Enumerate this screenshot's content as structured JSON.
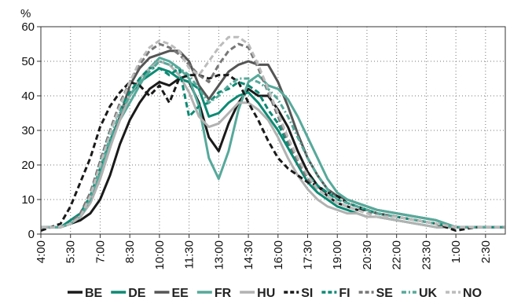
{
  "chart_data": {
    "type": "line",
    "ylabel": "%",
    "ylim": [
      0,
      60
    ],
    "yticks": [
      0,
      10,
      20,
      30,
      40,
      50,
      60
    ],
    "xlim": [
      4.0,
      27.5
    ],
    "xticks": [
      "4:00",
      "5:30",
      "7:00",
      "8:30",
      "10:00",
      "11:30",
      "13:00",
      "14:30",
      "16:00",
      "17:30",
      "19:00",
      "20:30",
      "22:00",
      "23:30",
      "1:00",
      "2:30"
    ],
    "grid": true,
    "legend_position": "bottom",
    "series": [
      {
        "name": "BE",
        "color": "#1a1a1a",
        "dash": "solid",
        "x": [
          4.0,
          5.0,
          5.5,
          6.0,
          6.5,
          7.0,
          7.5,
          8.0,
          8.5,
          9.0,
          9.5,
          10.0,
          10.5,
          11.0,
          11.5,
          12.0,
          12.5,
          13.0,
          13.5,
          14.0,
          14.5,
          15.0,
          15.5,
          16.0,
          16.5,
          17.0,
          17.5,
          18.0,
          18.5,
          19.0,
          19.5,
          20.0,
          20.5,
          21.0,
          22.0,
          23.0,
          24.0,
          24.5,
          25.0,
          26.0,
          27.5
        ],
        "y": [
          2,
          2,
          3,
          4,
          6,
          10,
          17,
          26,
          33,
          38,
          42,
          44,
          43,
          45,
          44,
          38,
          28,
          24,
          32,
          38,
          42,
          40,
          40,
          36,
          31,
          24,
          18,
          14,
          11,
          9,
          8,
          7,
          7,
          6,
          5,
          4,
          3,
          2,
          2,
          2,
          2
        ]
      },
      {
        "name": "DE",
        "color": "#0d8a74",
        "dash": "solid",
        "x": [
          4.0,
          5.0,
          5.5,
          6.0,
          6.5,
          7.0,
          7.5,
          8.0,
          8.5,
          9.0,
          9.5,
          10.0,
          10.5,
          11.0,
          11.5,
          12.0,
          12.5,
          13.0,
          13.5,
          14.0,
          14.5,
          15.0,
          15.5,
          16.0,
          16.5,
          17.0,
          17.5,
          18.0,
          18.5,
          19.0,
          19.5,
          20.0,
          20.5,
          21.0,
          22.0,
          23.0,
          24.0,
          25.0,
          26.0,
          27.5
        ],
        "y": [
          2,
          2,
          4,
          6,
          11,
          19,
          27,
          34,
          40,
          44,
          46,
          48,
          47,
          45,
          44,
          42,
          34,
          35,
          38,
          40,
          41,
          38,
          34,
          30,
          25,
          20,
          15,
          12,
          10,
          8,
          7,
          6,
          5,
          5,
          4,
          3,
          2,
          2,
          2,
          2
        ]
      },
      {
        "name": "EE",
        "color": "#555555",
        "dash": "solid",
        "x": [
          4.0,
          5.0,
          5.5,
          6.0,
          6.5,
          7.0,
          7.5,
          8.0,
          8.5,
          9.0,
          9.5,
          10.0,
          10.5,
          11.0,
          11.5,
          12.0,
          12.5,
          13.0,
          13.5,
          14.0,
          14.5,
          15.0,
          15.5,
          16.0,
          16.5,
          17.0,
          17.5,
          18.0,
          18.5,
          19.0,
          19.5,
          20.0,
          20.5,
          21.0,
          22.0,
          23.0,
          24.0,
          25.0,
          26.0,
          27.5
        ],
        "y": [
          2,
          2,
          3,
          5,
          9,
          16,
          25,
          34,
          43,
          48,
          51,
          52,
          53,
          53,
          50,
          43,
          39,
          43,
          47,
          49,
          50,
          49,
          49,
          44,
          37,
          29,
          22,
          17,
          13,
          11,
          10,
          9,
          8,
          7,
          6,
          5,
          4,
          2,
          2,
          2
        ]
      },
      {
        "name": "FR",
        "color": "#56a99a",
        "dash": "solid",
        "x": [
          4.0,
          5.0,
          5.5,
          6.0,
          6.5,
          7.0,
          7.5,
          8.0,
          8.5,
          9.0,
          9.5,
          10.0,
          10.5,
          11.0,
          11.5,
          12.0,
          12.5,
          13.0,
          13.5,
          14.0,
          14.5,
          15.0,
          15.5,
          16.0,
          16.5,
          17.0,
          17.5,
          18.0,
          18.5,
          19.0,
          19.5,
          20.0,
          20.5,
          21.0,
          22.0,
          23.0,
          24.0,
          25.0,
          26.0,
          27.5
        ],
        "y": [
          2,
          2,
          3,
          5,
          10,
          17,
          26,
          33,
          38,
          43,
          48,
          51,
          50,
          48,
          45,
          37,
          22,
          16,
          24,
          36,
          44,
          46,
          43,
          42,
          39,
          34,
          28,
          22,
          16,
          12,
          10,
          9,
          8,
          7,
          6,
          5,
          4,
          2,
          2,
          2
        ]
      },
      {
        "name": "HU",
        "color": "#b2b2b2",
        "dash": "solid",
        "x": [
          4.0,
          5.0,
          5.5,
          6.0,
          6.5,
          7.0,
          7.5,
          8.0,
          8.5,
          9.0,
          9.5,
          10.0,
          10.5,
          11.0,
          11.5,
          12.0,
          12.5,
          13.0,
          13.5,
          14.0,
          14.5,
          15.0,
          15.5,
          16.0,
          16.5,
          17.0,
          17.5,
          18.0,
          18.5,
          19.0,
          19.5,
          20.0,
          20.5,
          21.0,
          22.0,
          23.0,
          24.0,
          25.0,
          26.0,
          27.5
        ],
        "y": [
          2,
          2,
          3,
          5,
          9,
          16,
          25,
          33,
          40,
          45,
          48,
          50,
          49,
          46,
          41,
          34,
          31,
          32,
          35,
          38,
          38,
          36,
          33,
          28,
          22,
          17,
          13,
          10,
          8,
          7,
          6,
          6,
          5,
          5,
          4,
          3,
          2,
          2,
          2,
          2
        ]
      },
      {
        "name": "SI",
        "color": "#1a1a1a",
        "dash": "dash",
        "x": [
          4.0,
          4.5,
          5.0,
          5.5,
          6.0,
          6.5,
          7.0,
          7.5,
          8.0,
          8.5,
          9.0,
          9.5,
          10.0,
          10.5,
          11.0,
          11.5,
          12.0,
          12.5,
          13.0,
          13.5,
          14.0,
          14.5,
          15.0,
          15.5,
          16.0,
          16.5,
          17.0,
          17.5,
          18.0,
          18.5,
          19.0,
          19.5,
          20.0,
          20.5,
          21.0,
          22.0,
          23.0,
          24.0,
          24.5,
          25.0,
          26.0,
          27.5
        ],
        "y": [
          1,
          2,
          3,
          8,
          15,
          22,
          31,
          37,
          41,
          44,
          43,
          40,
          43,
          38,
          45,
          46,
          46,
          45,
          46,
          46,
          44,
          38,
          33,
          27,
          22,
          19,
          17,
          15,
          14,
          12,
          11,
          9,
          8,
          7,
          6,
          5,
          4,
          3,
          2,
          1,
          2,
          2
        ]
      },
      {
        "name": "FI",
        "color": "#0d8a74",
        "dash": "dash",
        "x": [
          4.0,
          5.0,
          5.5,
          6.0,
          6.5,
          7.0,
          7.5,
          8.0,
          8.5,
          9.0,
          9.5,
          10.0,
          10.5,
          11.0,
          11.5,
          12.0,
          12.5,
          13.0,
          13.5,
          14.0,
          14.5,
          15.0,
          15.5,
          16.0,
          16.5,
          17.0,
          17.5,
          18.0,
          18.5,
          19.0,
          19.5,
          20.0,
          20.5,
          21.0,
          22.0,
          23.0,
          24.0,
          25.0,
          26.0,
          27.5
        ],
        "y": [
          2,
          2,
          3,
          5,
          11,
          21,
          30,
          36,
          41,
          45,
          48,
          48,
          46,
          48,
          34,
          37,
          38,
          41,
          42,
          44,
          43,
          41,
          36,
          32,
          26,
          21,
          17,
          14,
          12,
          10,
          9,
          8,
          7,
          6,
          5,
          4,
          3,
          2,
          2,
          2
        ]
      },
      {
        "name": "SE",
        "color": "#777777",
        "dash": "dash",
        "x": [
          4.0,
          5.0,
          5.5,
          6.0,
          6.5,
          7.0,
          7.5,
          8.0,
          8.5,
          9.0,
          9.5,
          10.0,
          10.5,
          11.0,
          11.5,
          12.0,
          12.5,
          13.0,
          13.5,
          14.0,
          14.5,
          15.0,
          15.5,
          16.0,
          16.5,
          17.0,
          17.5,
          18.0,
          18.5,
          19.0,
          19.5,
          20.0,
          20.5,
          21.0,
          22.0,
          23.0,
          24.0,
          25.0,
          26.0,
          27.5
        ],
        "y": [
          2,
          2,
          3,
          6,
          12,
          21,
          30,
          38,
          44,
          49,
          53,
          55,
          54,
          52,
          49,
          46,
          44,
          49,
          53,
          55,
          54,
          48,
          41,
          34,
          27,
          21,
          16,
          13,
          11,
          9,
          8,
          7,
          6,
          6,
          5,
          4,
          3,
          2,
          2,
          2
        ]
      },
      {
        "name": "UK",
        "color": "#56a99a",
        "dash": "dashdot",
        "x": [
          4.0,
          5.0,
          5.5,
          6.0,
          6.5,
          7.0,
          7.5,
          8.0,
          8.5,
          9.0,
          9.5,
          10.0,
          10.5,
          11.0,
          11.5,
          12.0,
          12.5,
          13.0,
          13.5,
          14.0,
          14.5,
          15.0,
          15.5,
          16.0,
          16.5,
          17.0,
          17.5,
          18.0,
          18.5,
          19.0,
          19.5,
          20.0,
          20.5,
          21.0,
          22.0,
          23.0,
          24.0,
          25.0,
          26.0,
          27.5
        ],
        "y": [
          2,
          2,
          3,
          5,
          10,
          19,
          28,
          35,
          40,
          44,
          47,
          50,
          49,
          48,
          46,
          42,
          38,
          40,
          43,
          45,
          45,
          44,
          42,
          39,
          34,
          28,
          22,
          17,
          13,
          10,
          9,
          8,
          7,
          6,
          5,
          4,
          3,
          2,
          2,
          2
        ]
      },
      {
        "name": "NO",
        "color": "#bcbcbc",
        "dash": "dash",
        "x": [
          4.0,
          5.0,
          5.5,
          6.0,
          6.5,
          7.0,
          7.5,
          8.0,
          8.5,
          9.0,
          9.5,
          10.0,
          10.5,
          11.0,
          11.5,
          12.0,
          12.5,
          13.0,
          13.5,
          14.0,
          14.5,
          15.0,
          15.5,
          16.0,
          16.5,
          17.0,
          17.5,
          18.0,
          18.5,
          19.0,
          19.5,
          20.0,
          20.5,
          21.0,
          22.0,
          23.0,
          24.0,
          25.0,
          26.0,
          27.5
        ],
        "y": [
          2,
          2,
          3,
          5,
          11,
          20,
          29,
          37,
          44,
          50,
          54,
          56,
          55,
          53,
          48,
          46,
          50,
          54,
          57,
          57,
          55,
          49,
          42,
          35,
          28,
          22,
          17,
          13,
          11,
          9,
          8,
          7,
          6,
          5,
          5,
          4,
          3,
          2,
          2,
          2
        ]
      }
    ]
  }
}
